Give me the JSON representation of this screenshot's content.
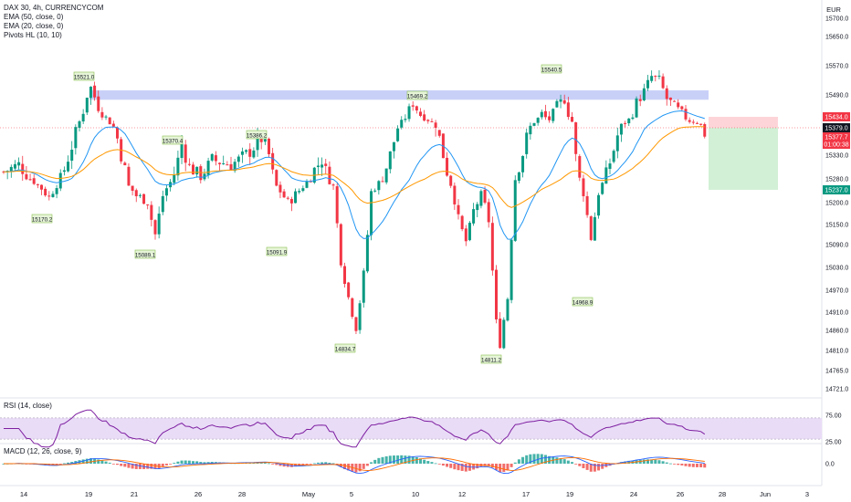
{
  "header": {
    "title": "DAX 30, 4h, CURRENCYCOM",
    "indicators": [
      "EMA (50, close, 0)",
      "EMA (20, close, 0)",
      "Pivots HL (10, 10)"
    ],
    "currency": "EUR"
  },
  "panes": {
    "rsi_label": "RSI (14, close)",
    "macd_label": "MACD (12, 26, close, 9)"
  },
  "chart_data": {
    "type": "candlestick",
    "symbol": "DAX 30",
    "timeframe": "4h",
    "price_axis": {
      "ticks": [
        15700.0,
        15650.0,
        15570.0,
        15490.0,
        15434.0,
        15379.0,
        15330.0,
        15280.0,
        15237.0,
        15200.0,
        15150.0,
        15090.0,
        15030.0,
        14970.0,
        14910.0,
        14860.0,
        14810.0,
        14765.0,
        14721.0
      ],
      "range": [
        14700,
        15730
      ]
    },
    "time_axis": {
      "labels": [
        "14",
        "19",
        "21",
        "26",
        "28",
        "May",
        "5",
        "10",
        "12",
        "17",
        "19",
        "24",
        "26",
        "28",
        "Jun",
        "3"
      ]
    },
    "price_badges": [
      {
        "text": "15434.0",
        "color": "#f23645"
      },
      {
        "text": "15379.0",
        "color": "#131722"
      },
      {
        "text": "15377.7",
        "color": "#f23645"
      },
      {
        "text": "01:00:38",
        "color": "#f23645"
      },
      {
        "text": "15237.0",
        "color": "#089981"
      }
    ],
    "pivot_labels": [
      "15521.0",
      "15170.2",
      "15370.4",
      "15089.1",
      "15386.2",
      "15091.9",
      "14834.7",
      "15469.2",
      "14811.2",
      "15540.5",
      "14968.9"
    ],
    "resistance_zone": [
      15480,
      15500
    ],
    "position": {
      "entry": 15379.0,
      "stop": 15434.0,
      "target": 15237.0
    },
    "rsi": {
      "ticks": [
        75.0,
        25.0
      ],
      "band": [
        30,
        70
      ]
    },
    "macd": {
      "ticks": [
        0.0
      ]
    },
    "colors": {
      "up": "#089981",
      "down": "#f23645",
      "ema20": "#2196f3",
      "ema50": "#ff9800",
      "zone": "#b7c0f5",
      "stop_zone": "#fdd5d9",
      "target_zone": "#d2f0d6",
      "rsi_line": "#7e1fa0",
      "rsi_band": "#e9dcf7"
    }
  }
}
